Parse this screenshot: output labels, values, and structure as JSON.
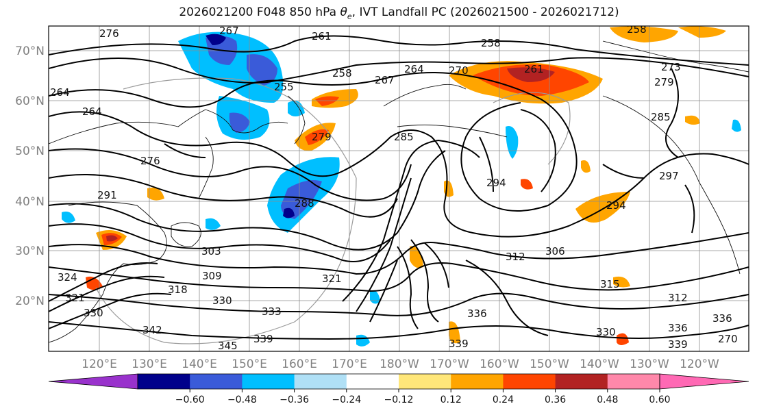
{
  "title_prefix": "2026021200 F048 850 hPa ",
  "title_symbol": "θ",
  "title_symbol_sub": "e",
  "title_suffix": ", IVT Landfall PC (2026021500 - 2026021712)",
  "map": {
    "lat_labels": [
      "70°N",
      "60°N",
      "50°N",
      "40°N",
      "30°N",
      "20°N"
    ],
    "lon_labels": [
      "120°E",
      "130°E",
      "140°E",
      "150°E",
      "160°E",
      "170°E",
      "180°W",
      "170°W",
      "160°W",
      "150°W",
      "140°W",
      "130°W",
      "120°W"
    ],
    "contour_labels": [
      "276",
      "267",
      "261",
      "258",
      "273",
      "258",
      "261",
      "264",
      "270",
      "267",
      "258",
      "255",
      "279",
      "264",
      "264",
      "279",
      "285",
      "276",
      "285",
      "294",
      "297",
      "291",
      "294",
      "288",
      "303",
      "306",
      "312",
      "309",
      "318",
      "321",
      "324",
      "330",
      "333",
      "336",
      "339",
      "342",
      "345",
      "339",
      "315",
      "312",
      "336",
      "339",
      "321",
      "330",
      "336",
      "330",
      "270"
    ]
  },
  "colorbar": {
    "ticks": [
      "−0.60",
      "−0.48",
      "−0.36",
      "−0.24",
      "−0.12",
      "0.12",
      "0.24",
      "0.36",
      "0.48",
      "0.60"
    ],
    "colors": [
      "#9932cc",
      "#00008b",
      "#3a5bd9",
      "#00bfff",
      "#b0e0f6",
      "#ffffff",
      "#ffe77a",
      "#ffa500",
      "#ff4500",
      "#b22222",
      "#ff88aa",
      "#ff69b4"
    ]
  }
}
